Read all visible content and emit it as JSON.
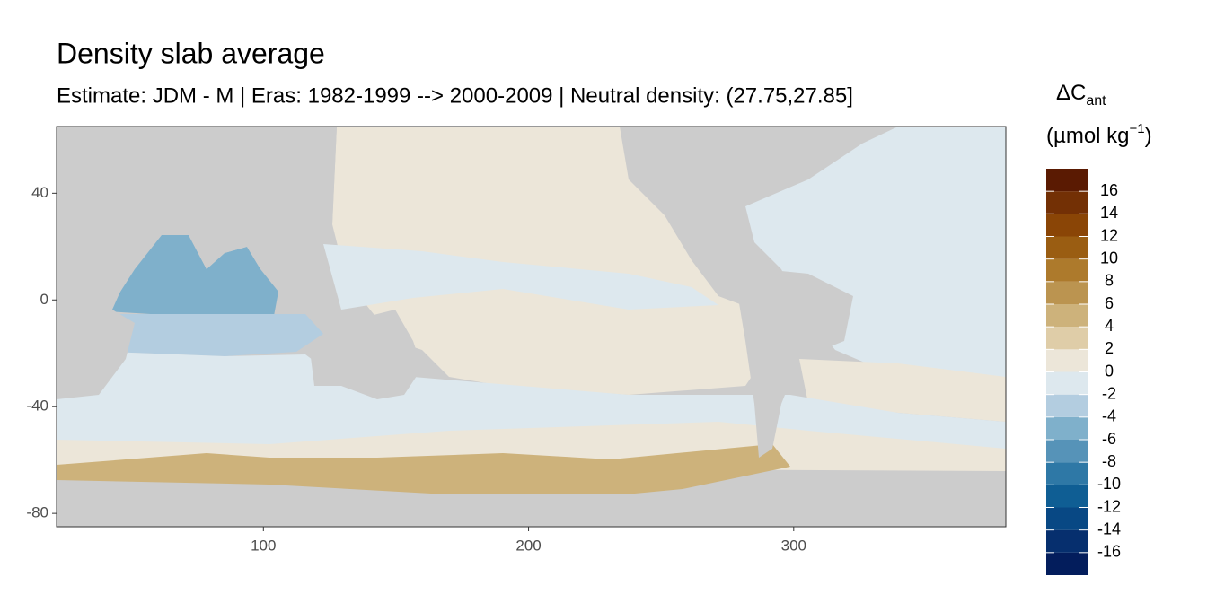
{
  "chart_data": {
    "type": "map",
    "title": "Density slab average",
    "subtitle": "Estimate: JDM - M | Eras: 1982-1999 --> 2000-2009 | Neutral density: (27.75,27.85]",
    "xlim": [
      22,
      380
    ],
    "xticks": [
      100,
      200,
      300
    ],
    "ylim": [
      -85,
      65
    ],
    "yticks": [
      40,
      0,
      -40,
      -80
    ],
    "legend": {
      "title_main": "ΔC",
      "title_sub": "ant",
      "unit_main": "(µmol kg",
      "unit_sup": "−1",
      "unit_close": ")",
      "breaks": [
        -18,
        -16,
        -14,
        -12,
        -10,
        -8,
        -6,
        -4,
        -2,
        0,
        2,
        4,
        6,
        8,
        10,
        12,
        14,
        16,
        18
      ],
      "colors": [
        "#031d5c",
        "#062f6e",
        "#084884",
        "#0f5e94",
        "#2e78a6",
        "#5693b8",
        "#7fb0cb",
        "#b3cde0",
        "#dde8ee",
        "#ece6d9",
        "#dfcda8",
        "#cdb27b",
        "#bb9450",
        "#ad7a2c",
        "#9a5d12",
        "#8a4506",
        "#733005",
        "#5a1a02"
      ],
      "ticks": [
        16,
        14,
        12,
        10,
        8,
        6,
        4,
        2,
        0,
        -2,
        -4,
        -6,
        -8,
        -10,
        -12,
        -14,
        -16
      ]
    }
  }
}
